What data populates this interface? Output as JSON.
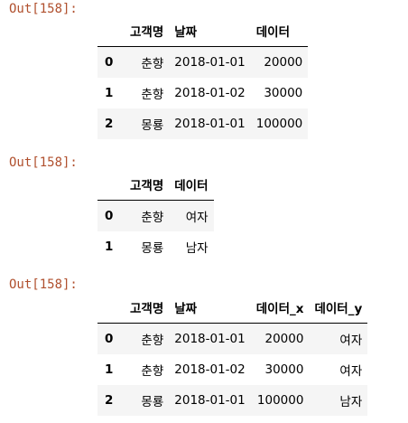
{
  "outputs": [
    {
      "prompt": "Out[158]:",
      "columns": [
        "",
        "고객명",
        "날짜",
        "데이터"
      ],
      "rows": [
        [
          "0",
          "춘향",
          "2018-01-01",
          "20000"
        ],
        [
          "1",
          "춘향",
          "2018-01-02",
          "30000"
        ],
        [
          "2",
          "몽룡",
          "2018-01-01",
          "100000"
        ]
      ]
    },
    {
      "prompt": "Out[158]:",
      "columns": [
        "",
        "고객명",
        "데이터"
      ],
      "rows": [
        [
          "0",
          "춘향",
          "여자"
        ],
        [
          "1",
          "몽룡",
          "남자"
        ]
      ]
    },
    {
      "prompt": "Out[158]:",
      "columns": [
        "",
        "고객명",
        "날짜",
        "데이터_x",
        "데이터_y"
      ],
      "rows": [
        [
          "0",
          "춘향",
          "2018-01-01",
          "20000",
          "여자"
        ],
        [
          "1",
          "춘향",
          "2018-01-02",
          "30000",
          "여자"
        ],
        [
          "2",
          "몽룡",
          "2018-01-01",
          "100000",
          "남자"
        ]
      ]
    }
  ]
}
